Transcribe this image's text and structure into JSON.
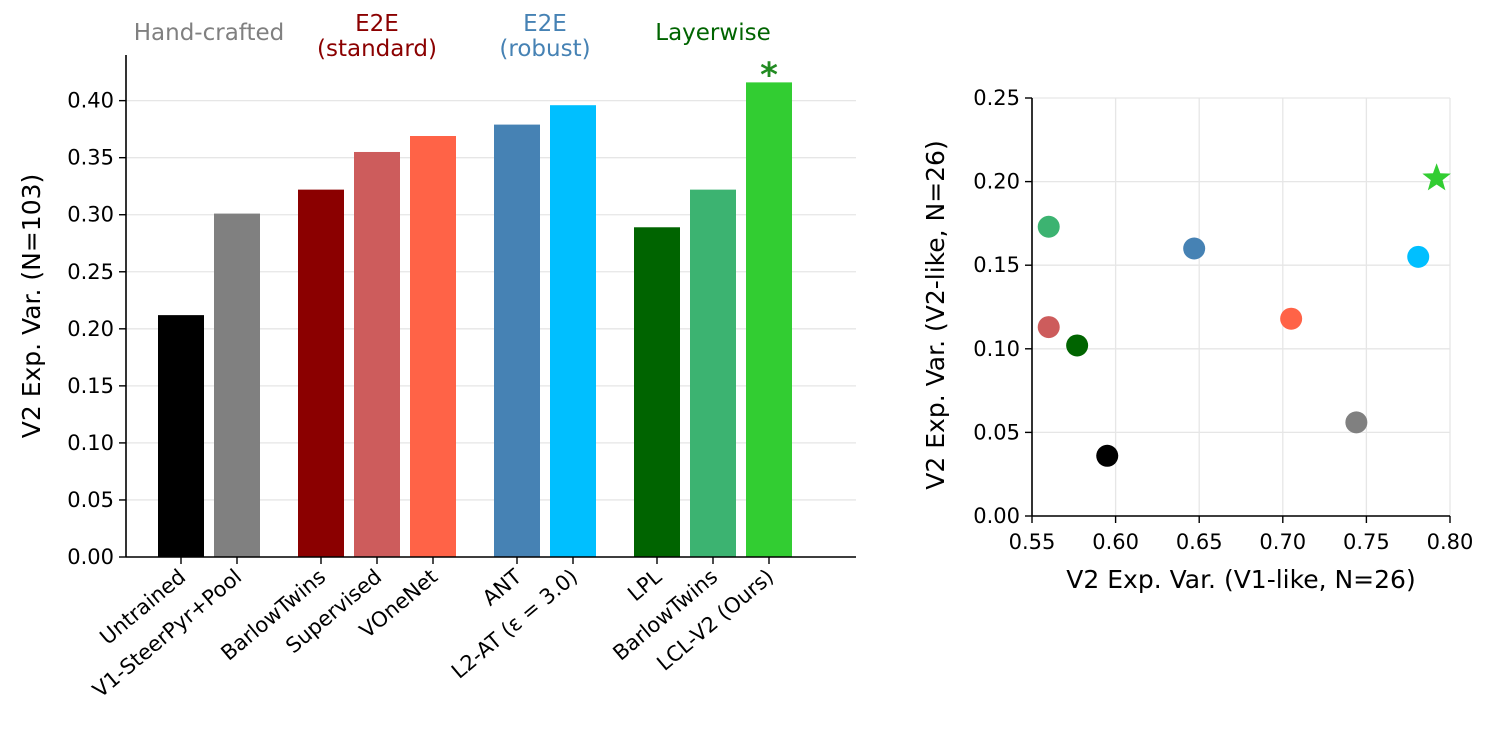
{
  "chart_data": [
    {
      "type": "bar",
      "ylabel": "V2 Exp. Var. (N=103)",
      "ylim": [
        0,
        0.44
      ],
      "yticks": [
        "0.00",
        "0.05",
        "0.10",
        "0.15",
        "0.20",
        "0.25",
        "0.30",
        "0.35",
        "0.40"
      ],
      "grid": true,
      "groups": [
        {
          "label": [
            "Hand-crafted"
          ],
          "color": "#808080",
          "bars": [
            0,
            1
          ]
        },
        {
          "label": [
            "E2E",
            "(standard)"
          ],
          "color": "#8b0000",
          "bars": [
            2,
            3,
            4
          ]
        },
        {
          "label": [
            "E2E",
            "(robust)"
          ],
          "color": "#4682b4",
          "bars": [
            5,
            6
          ]
        },
        {
          "label": [
            "Layerwise"
          ],
          "color": "#006400",
          "bars": [
            7,
            8,
            9
          ]
        }
      ],
      "categories": [
        "Untrained",
        "V1-SteerPyr+Pool",
        "BarlowTwins",
        "Supervised",
        "VOneNet",
        "ANT",
        "L2-AT (ε = 3.0)",
        "LPL",
        "BarlowTwins",
        "LCL-V2 (Ours)"
      ],
      "values": [
        0.212,
        0.301,
        0.322,
        0.355,
        0.369,
        0.379,
        0.396,
        0.289,
        0.322,
        0.416
      ],
      "colors": [
        "#000000",
        "#808080",
        "#8b0000",
        "#cd5c5c",
        "#ff6347",
        "#4682b4",
        "#00bfff",
        "#006400",
        "#3cb371",
        "#32cd32"
      ],
      "annotation": {
        "text": "*",
        "bar": 9,
        "color": "#228b22"
      }
    },
    {
      "type": "scatter",
      "xlabel": "V2 Exp. Var. (V1-like, N=26)",
      "ylabel": "V2 Exp. Var. (V2-like, N=26)",
      "xlim": [
        0.55,
        0.8
      ],
      "ylim": [
        0.0,
        0.25
      ],
      "xticks": [
        "0.55",
        "0.60",
        "0.65",
        "0.70",
        "0.75",
        "0.80"
      ],
      "yticks": [
        "0.00",
        "0.05",
        "0.10",
        "0.15",
        "0.20",
        "0.25"
      ],
      "grid": true,
      "points": [
        {
          "x": 0.595,
          "y": 0.036,
          "color": "#000000",
          "marker": "circle"
        },
        {
          "x": 0.744,
          "y": 0.056,
          "color": "#808080",
          "marker": "circle"
        },
        {
          "x": 0.577,
          "y": 0.102,
          "color": "#006400",
          "marker": "circle"
        },
        {
          "x": 0.56,
          "y": 0.113,
          "color": "#cd5c5c",
          "marker": "circle"
        },
        {
          "x": 0.705,
          "y": 0.118,
          "color": "#ff6347",
          "marker": "circle"
        },
        {
          "x": 0.781,
          "y": 0.155,
          "color": "#00bfff",
          "marker": "circle"
        },
        {
          "x": 0.647,
          "y": 0.16,
          "color": "#4682b4",
          "marker": "circle"
        },
        {
          "x": 0.56,
          "y": 0.173,
          "color": "#3cb371",
          "marker": "circle"
        },
        {
          "x": 0.792,
          "y": 0.202,
          "color": "#32cd32",
          "marker": "star"
        }
      ]
    }
  ]
}
